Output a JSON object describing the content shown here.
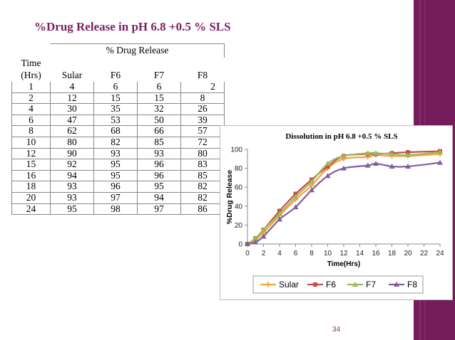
{
  "page": {
    "title": "%Drug Release in pH 6.8 +0.5 % SLS",
    "page_number": "34"
  },
  "table": {
    "time_header_line1": "Time",
    "time_header_line2": "(Hrs)",
    "group_header": "% Drug Release",
    "columns": [
      "Sular",
      "F6",
      "F7",
      "F8"
    ],
    "rows": [
      [
        "1",
        "4",
        "6",
        "6",
        "2"
      ],
      [
        "2",
        "12",
        "15",
        "15",
        "8"
      ],
      [
        "4",
        "30",
        "35",
        "32",
        "26"
      ],
      [
        "6",
        "47",
        "53",
        "50",
        "39"
      ],
      [
        "8",
        "62",
        "68",
        "66",
        "57"
      ],
      [
        "10",
        "80",
        "82",
        "85",
        "72"
      ],
      [
        "12",
        "90",
        "93",
        "93",
        "80"
      ],
      [
        "15",
        "92",
        "95",
        "96",
        "83"
      ],
      [
        "16",
        "94",
        "95",
        "96",
        "85"
      ],
      [
        "18",
        "93",
        "96",
        "95",
        "82"
      ],
      [
        "20",
        "93",
        "97",
        "94",
        "82"
      ],
      [
        "24",
        "95",
        "98",
        "97",
        "86"
      ]
    ]
  },
  "chart_data": {
    "type": "line",
    "title": "Dissolution in pH 6.8 +0.5 %  SLS",
    "xlabel": "Time(Hrs)",
    "ylabel": "%Drug Release",
    "xlim": [
      0,
      24
    ],
    "ylim": [
      0,
      100
    ],
    "xticks": [
      0,
      2,
      4,
      6,
      8,
      10,
      12,
      14,
      16,
      18,
      20,
      22,
      24
    ],
    "yticks": [
      0,
      20,
      40,
      60,
      80,
      100
    ],
    "legend_position": "bottom",
    "grid": false,
    "series": [
      {
        "name": "Sular",
        "color": "#f7a23b",
        "marker": "cross",
        "x": [
          0,
          1,
          2,
          4,
          6,
          8,
          10,
          12,
          15,
          16,
          18,
          20,
          24
        ],
        "y": [
          0,
          4,
          12,
          30,
          47,
          62,
          80,
          90,
          92,
          94,
          93,
          93,
          95
        ]
      },
      {
        "name": "F6",
        "color": "#c0504d",
        "marker": "square",
        "x": [
          0,
          1,
          2,
          4,
          6,
          8,
          10,
          12,
          15,
          16,
          18,
          20,
          24
        ],
        "y": [
          0,
          6,
          15,
          35,
          53,
          68,
          82,
          93,
          95,
          95,
          96,
          97,
          98
        ]
      },
      {
        "name": "F7",
        "color": "#9bbb59",
        "marker": "triangle",
        "x": [
          0,
          1,
          2,
          4,
          6,
          8,
          10,
          12,
          15,
          16,
          18,
          20,
          24
        ],
        "y": [
          0,
          6,
          15,
          32,
          50,
          66,
          85,
          93,
          96,
          96,
          95,
          94,
          97
        ]
      },
      {
        "name": "F8",
        "color": "#7f5f9f",
        "marker": "triangle",
        "x": [
          0,
          1,
          2,
          4,
          6,
          8,
          10,
          12,
          15,
          16,
          18,
          20,
          24
        ],
        "y": [
          0,
          2,
          8,
          26,
          39,
          57,
          72,
          80,
          83,
          85,
          82,
          82,
          86
        ]
      }
    ]
  }
}
